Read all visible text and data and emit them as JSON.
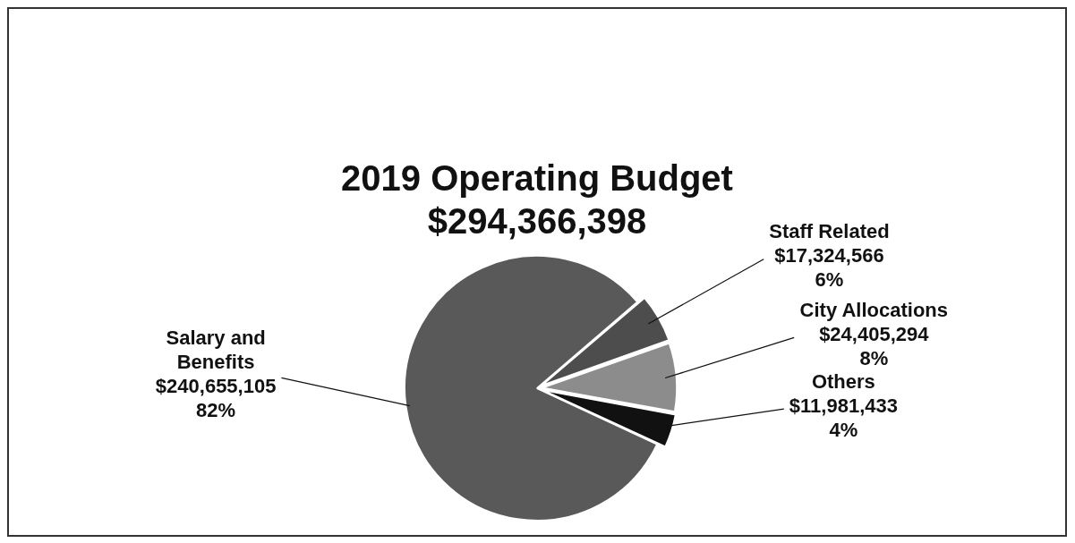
{
  "chart_data": {
    "type": "pie",
    "title": "2019 Operating Budget",
    "subtitle": "$294,366,398",
    "categories": [
      "Salary and Benefits",
      "Staff Related",
      "City Allocations",
      "Others"
    ],
    "values": [
      240655105,
      17324566,
      24405294,
      11981433
    ],
    "colors": [
      "#595959",
      "#4d4d4d",
      "#8c8c8c",
      "#111111"
    ],
    "value_labels": [
      "$240,655,105\n82%",
      "$17,324,566\n6%",
      "$24,405,294\n8%",
      "$11,981,433\n4%"
    ],
    "legend": false
  }
}
